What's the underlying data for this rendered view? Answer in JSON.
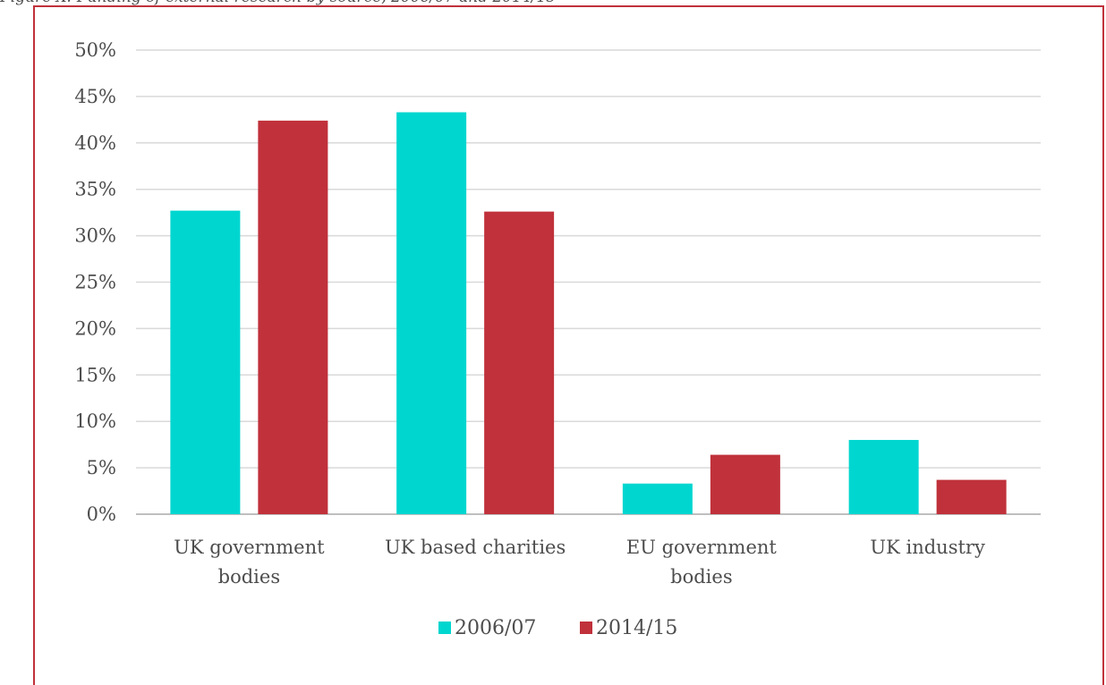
{
  "caption": "Figure X: Funding of external research by source, 2006/07 and 2014/15",
  "chart_data": {
    "type": "bar",
    "title": "",
    "xlabel": "",
    "ylabel": "",
    "categories": [
      [
        "UK government",
        "bodies"
      ],
      [
        "UK based charities"
      ],
      [
        "EU government",
        "bodies"
      ],
      [
        "UK industry"
      ]
    ],
    "series": [
      {
        "name": "2006/07",
        "color": "#00d6d0",
        "values": [
          32.7,
          43.3,
          3.3,
          8.0
        ]
      },
      {
        "name": "2014/15",
        "color": "#c0313b",
        "values": [
          42.4,
          32.6,
          6.4,
          3.7
        ]
      }
    ],
    "ylim": [
      0,
      50
    ],
    "yticks": [
      "0%",
      "5%",
      "10%",
      "15%",
      "20%",
      "25%",
      "30%",
      "35%",
      "40%",
      "45%",
      "50%"
    ],
    "grid": true,
    "legend_position": "bottom"
  }
}
